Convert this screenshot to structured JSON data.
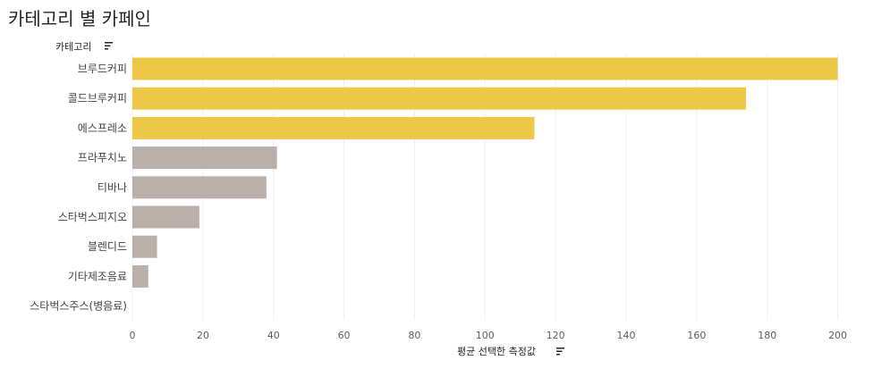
{
  "page": {
    "title": "카테고리 별 카페인"
  },
  "chart_data": {
    "type": "bar",
    "orientation": "horizontal",
    "title": "카테고리 별 카페인",
    "ylabel": "카테고리",
    "xlabel": "평균 선택한 측정값",
    "categories": [
      "브루드커피",
      "콜드브루커피",
      "에스프레소",
      "프라푸치노",
      "티바나",
      "스타벅스피지오",
      "블렌디드",
      "기타제조음료",
      "스타벅스주스(병음료)"
    ],
    "values": [
      200,
      174,
      114,
      41,
      38,
      19,
      7,
      4.5,
      0
    ],
    "highlight_colors": [
      "#ECC846",
      "#ECC846",
      "#ECC846",
      "#BAAFA9",
      "#BAAFA9",
      "#BAAFA9",
      "#BAAFA9",
      "#BAAFA9",
      "#BAAFA9"
    ],
    "xlim": [
      0,
      210
    ],
    "xticks": [
      0,
      20,
      40,
      60,
      80,
      100,
      120,
      140,
      160,
      180,
      200
    ],
    "grid": true,
    "sort_icons": [
      "sort-icon",
      "sort-icon"
    ]
  }
}
